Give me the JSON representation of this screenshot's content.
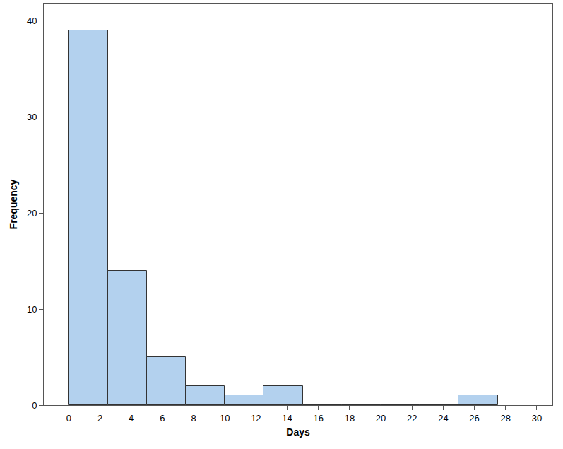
{
  "chart_data": {
    "type": "histogram",
    "x_label": "Days",
    "y_label": "Frequency",
    "bins": [
      0,
      2.5,
      5,
      7.5,
      10,
      12.5,
      15,
      17.5,
      20,
      22.5,
      25,
      27.5
    ],
    "counts": [
      39,
      14,
      5,
      2,
      1,
      2,
      0,
      0,
      0,
      0,
      1
    ],
    "color": "#b3d1ee",
    "xlim": [
      -1.6,
      31
    ],
    "xticks": [
      0,
      2,
      4,
      6,
      8,
      10,
      12,
      14,
      16,
      18,
      20,
      22,
      24,
      26,
      28,
      30
    ],
    "ylim": [
      0,
      41.8
    ],
    "yticks": [
      0,
      10,
      20,
      30,
      40
    ],
    "grid": false
  }
}
